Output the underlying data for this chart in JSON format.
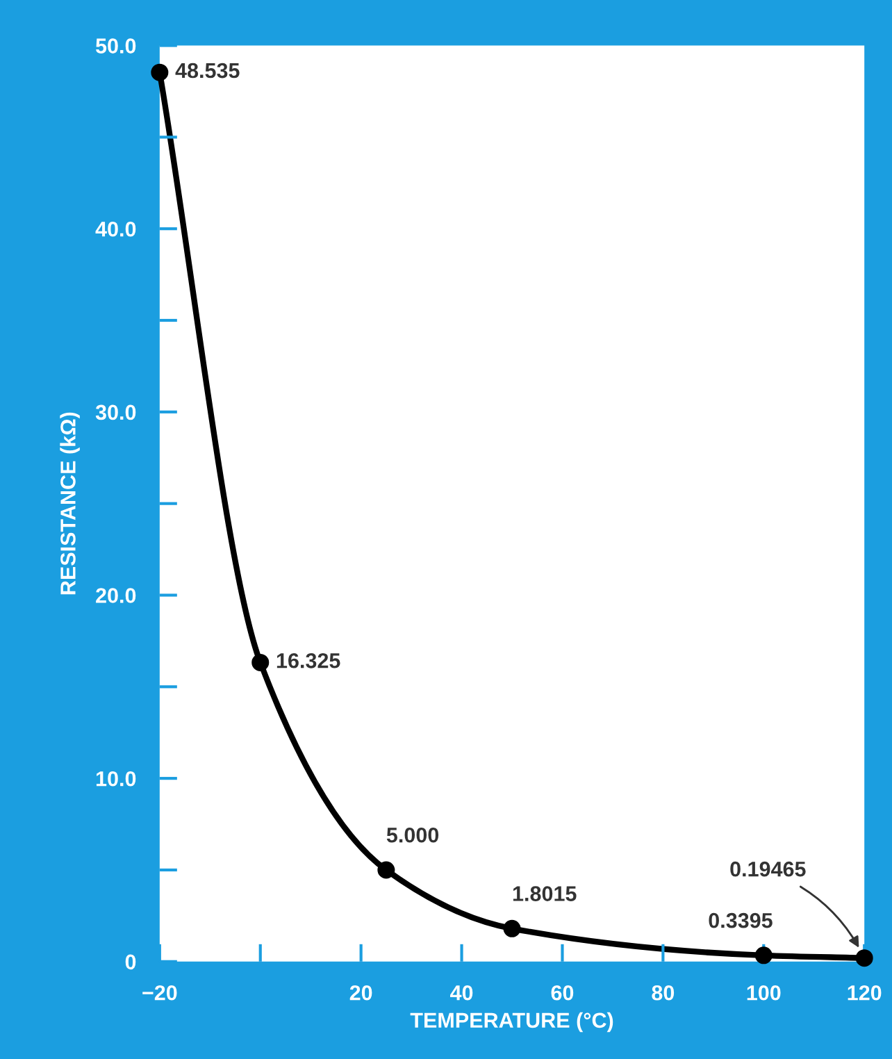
{
  "chart_data": {
    "type": "line",
    "xlabel": "TEMPERATURE (°C)",
    "ylabel": "RESISTANCE (kΩ)",
    "x": [
      -20,
      0,
      25,
      50,
      100,
      120
    ],
    "series": [
      {
        "color": "#000000",
        "values": [
          48.535,
          16.325,
          5.0,
          1.8015,
          0.3395,
          0.19465
        ],
        "value_labels": [
          "48.535",
          "16.325",
          "5.000",
          "1.8015",
          "0.3395",
          "0.19465"
        ]
      }
    ],
    "xlim": [
      -20,
      120
    ],
    "xticks": [
      {
        "value": -20,
        "label": "−20"
      },
      {
        "value": 0,
        "label": null
      },
      20,
      40,
      60,
      80,
      100,
      120
    ],
    "ylim": [
      0,
      50
    ],
    "yticks": [
      0,
      {
        "value": 5,
        "label": null
      },
      {
        "value": 10,
        "label": "10.0"
      },
      {
        "value": 15,
        "label": null
      },
      {
        "value": 20,
        "label": "20.0"
      },
      {
        "value": 25,
        "label": null
      },
      {
        "value": 30,
        "label": "30.0"
      },
      {
        "value": 35,
        "label": null
      },
      {
        "value": 40,
        "label": "40.0"
      },
      {
        "value": 45,
        "label": null
      },
      {
        "value": 50,
        "label": "50.0"
      }
    ],
    "marker": "circle",
    "line_style": "solid",
    "grid": false
  }
}
